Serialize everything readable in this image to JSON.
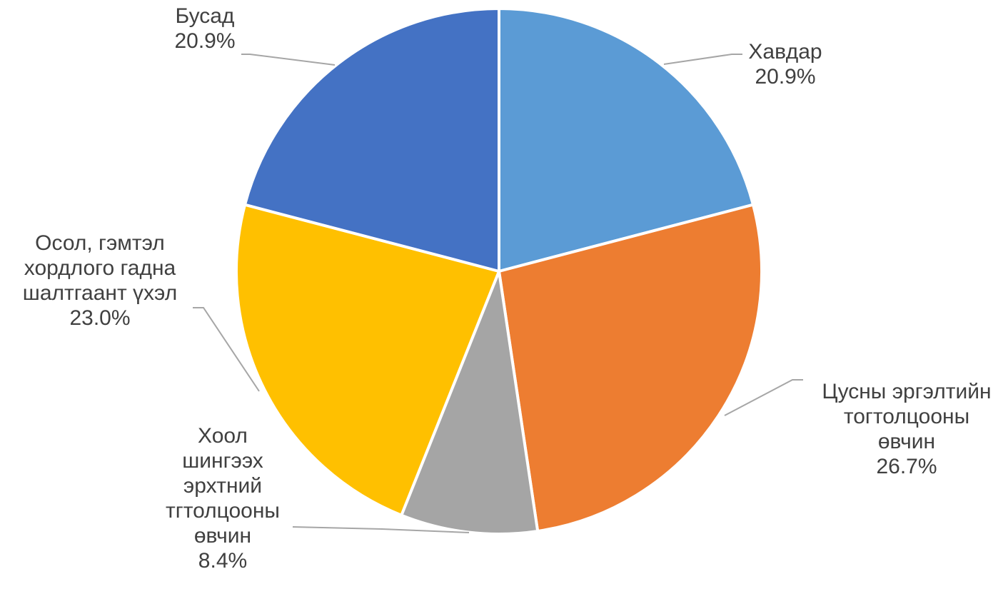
{
  "chart_data": {
    "type": "pie",
    "start_angle_deg": 0,
    "direction": "clockwise",
    "slices": [
      {
        "label_lines": [
          "Хавдар"
        ],
        "value_label": "20.9%",
        "value": 20.9,
        "color": "#5b9bd5"
      },
      {
        "label_lines": [
          "Цусны эргэлтийн",
          "тогтолцооны",
          "өвчин"
        ],
        "value_label": "26.7%",
        "value": 26.7,
        "color": "#ed7d31"
      },
      {
        "label_lines": [
          "Хоол",
          "шингээх",
          "эрхтний",
          "тгтолцооны",
          "өвчин"
        ],
        "value_label": "8.4%",
        "value": 8.4,
        "color": "#a5a5a5"
      },
      {
        "label_lines": [
          "Осол, гэмтэл",
          "хордлого гадна",
          "шалтгаант үхэл"
        ],
        "value_label": "23.0%",
        "value": 23.0,
        "color": "#ffc000"
      },
      {
        "label_lines": [
          "Бусад"
        ],
        "value_label": "20.9%",
        "value": 20.9,
        "color": "#4472c4"
      }
    ]
  }
}
